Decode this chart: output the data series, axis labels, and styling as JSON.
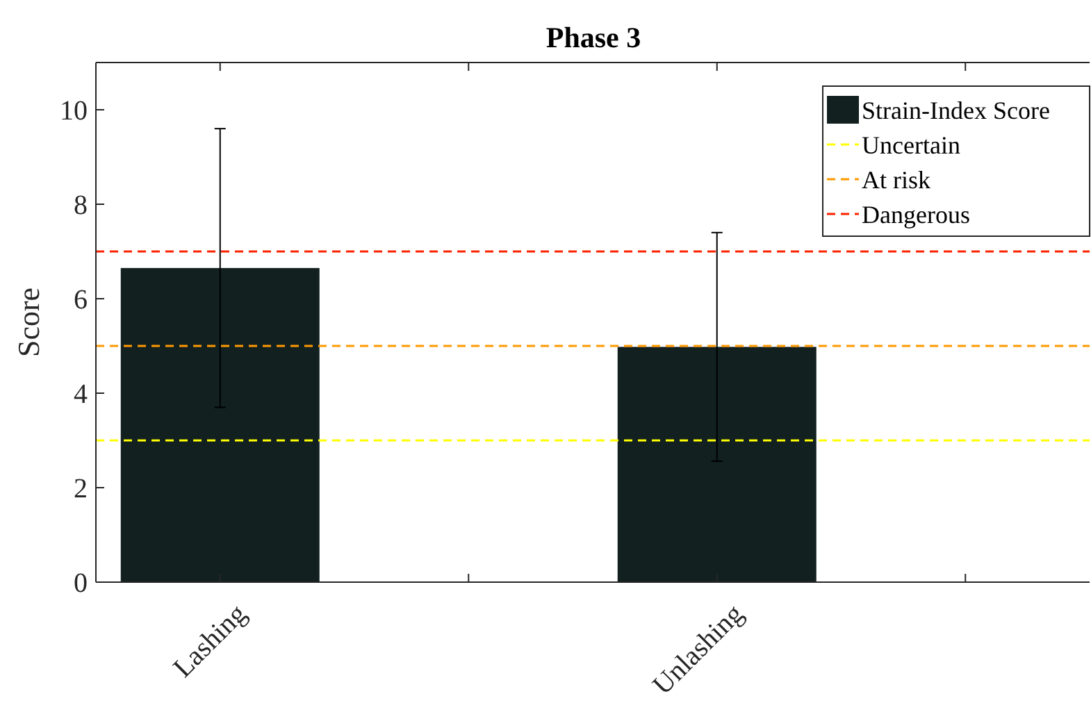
{
  "chart_data": {
    "type": "bar",
    "title": "Phase 3",
    "ylabel": "Score",
    "categories": [
      "Lashing",
      null,
      "Unlashing",
      null
    ],
    "series": [
      {
        "name": "Strain-Index Score",
        "color": "#122020",
        "values": [
          6.65,
          null,
          4.98,
          null
        ],
        "errors": [
          2.95,
          null,
          2.42,
          null
        ]
      }
    ],
    "ylim": [
      0,
      11
    ],
    "yticks": [
      0,
      2,
      4,
      6,
      8,
      10
    ],
    "grid": false,
    "legend": "top right",
    "ref_lines": [
      {
        "axis": "y",
        "value": 3,
        "label": "Uncertain",
        "color": "#ffff00",
        "line_style": "dashed"
      },
      {
        "axis": "y",
        "value": 5,
        "label": "At risk",
        "color": "#ff9900",
        "line_style": "dashed"
      },
      {
        "axis": "y",
        "value": 7,
        "label": "Dangerous",
        "color": "#ff2200",
        "line_style": "dashed"
      }
    ]
  }
}
